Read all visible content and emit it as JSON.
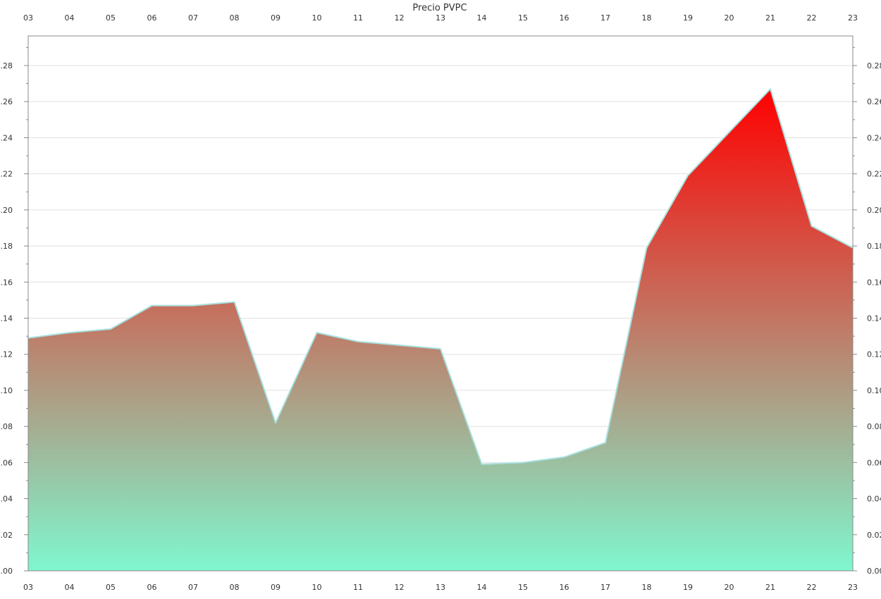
{
  "chart_data": {
    "type": "area",
    "title": "Precio PVPC",
    "xlabel": "",
    "ylabel": "",
    "categories": [
      "03",
      "04",
      "05",
      "06",
      "07",
      "08",
      "09",
      "10",
      "11",
      "12",
      "13",
      "14",
      "15",
      "16",
      "17",
      "18",
      "19",
      "20",
      "21",
      "22",
      "23"
    ],
    "series": [
      {
        "values": [
          0.129,
          0.132,
          0.134,
          0.147,
          0.147,
          0.149,
          0.082,
          0.132,
          0.127,
          0.125,
          0.123,
          0.059,
          0.06,
          0.063,
          0.071,
          0.179,
          0.219,
          0.243,
          0.267,
          0.191,
          0.179
        ]
      }
    ],
    "ylim": [
      0,
      0.28
    ],
    "yticks": [
      "0.00",
      "0.02",
      "0.04",
      "0.06",
      "0.08",
      "0.10",
      "0.12",
      "0.14",
      "0.16",
      "0.18",
      "0.20",
      "0.22",
      "0.24",
      "0.26",
      "0.28"
    ],
    "grid": true,
    "legend": "none",
    "colors": {
      "gradient_top": "#ff0000",
      "gradient_bottom": "#7ff7cf",
      "line": "#a8e0e0",
      "grid": "#e0e0e0",
      "axis": "#888888"
    }
  }
}
